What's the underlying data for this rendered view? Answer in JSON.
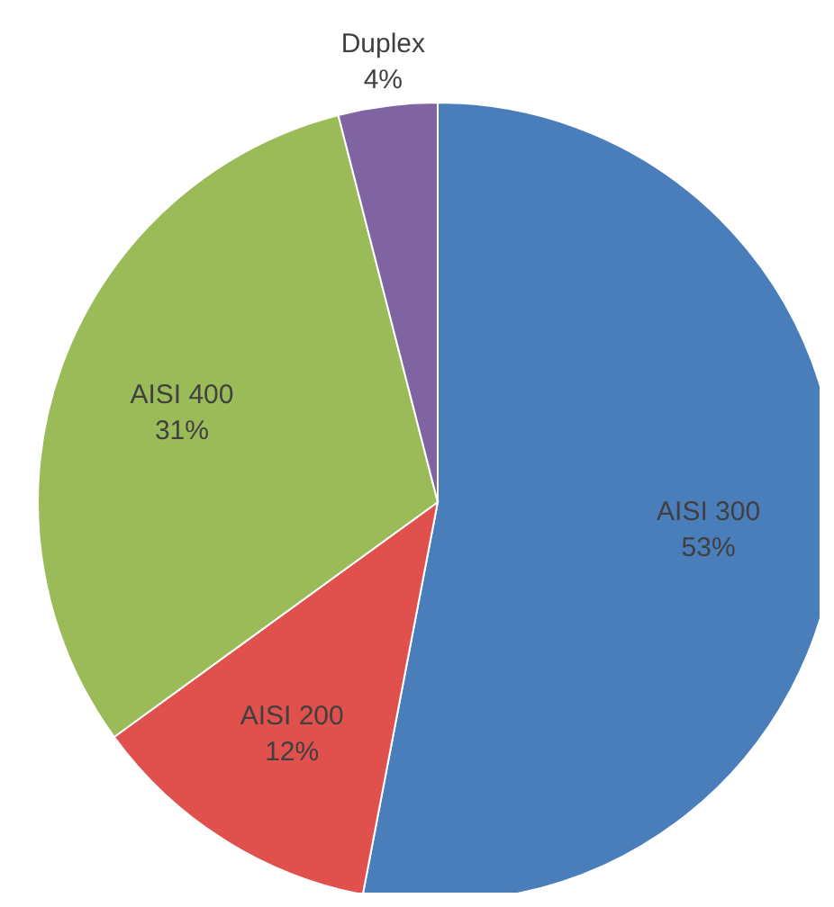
{
  "chart_data": {
    "type": "pie",
    "categories": [
      "AISI 300",
      "AISI 200",
      "AISI 400",
      "Duplex"
    ],
    "values": [
      53,
      12,
      31,
      4
    ],
    "colors": [
      "#4a7ebb",
      "#e0504d",
      "#9bbb59",
      "#8064a2"
    ],
    "value_labels": [
      "53%",
      "12%",
      "31%",
      "4%"
    ]
  }
}
